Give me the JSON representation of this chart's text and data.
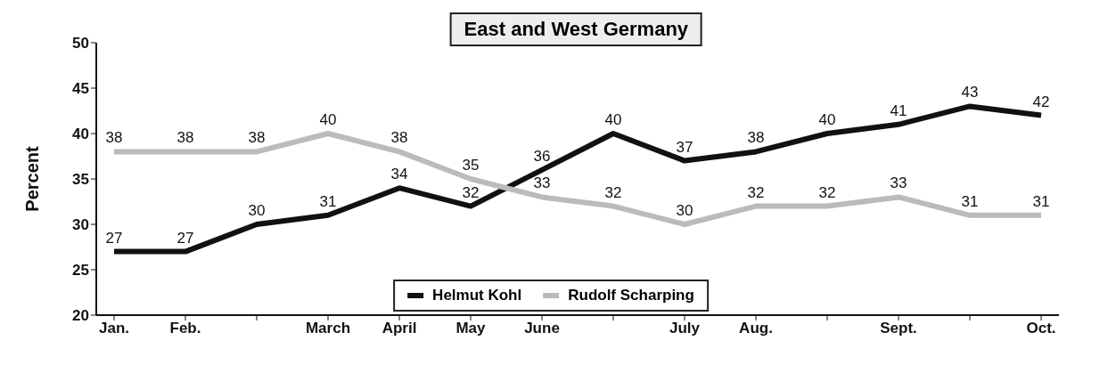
{
  "chart_data": {
    "type": "line",
    "title": "East and West Germany",
    "ylabel": "Percent",
    "categories": [
      "Jan.",
      "Feb.",
      null,
      "March",
      "April",
      "May",
      "June",
      null,
      "July",
      "Aug.",
      null,
      "Sept.",
      null,
      "Oct."
    ],
    "series": [
      {
        "name": "Helmut Kohl",
        "color": "#111111",
        "values": [
          27,
          27,
          30,
          31,
          34,
          32,
          36,
          40,
          37,
          38,
          40,
          41,
          43,
          42
        ]
      },
      {
        "name": "Rudolf Scharping",
        "color": "#bbbbbb",
        "values": [
          38,
          38,
          38,
          40,
          38,
          35,
          33,
          32,
          30,
          32,
          32,
          33,
          31,
          31
        ]
      }
    ],
    "ylim": [
      20,
      50
    ],
    "yticks": [
      20,
      25,
      30,
      35,
      40,
      45,
      50
    ],
    "grid": false,
    "legend": "bottom",
    "data_labels": true,
    "marker": "none",
    "line_style": "solid"
  }
}
